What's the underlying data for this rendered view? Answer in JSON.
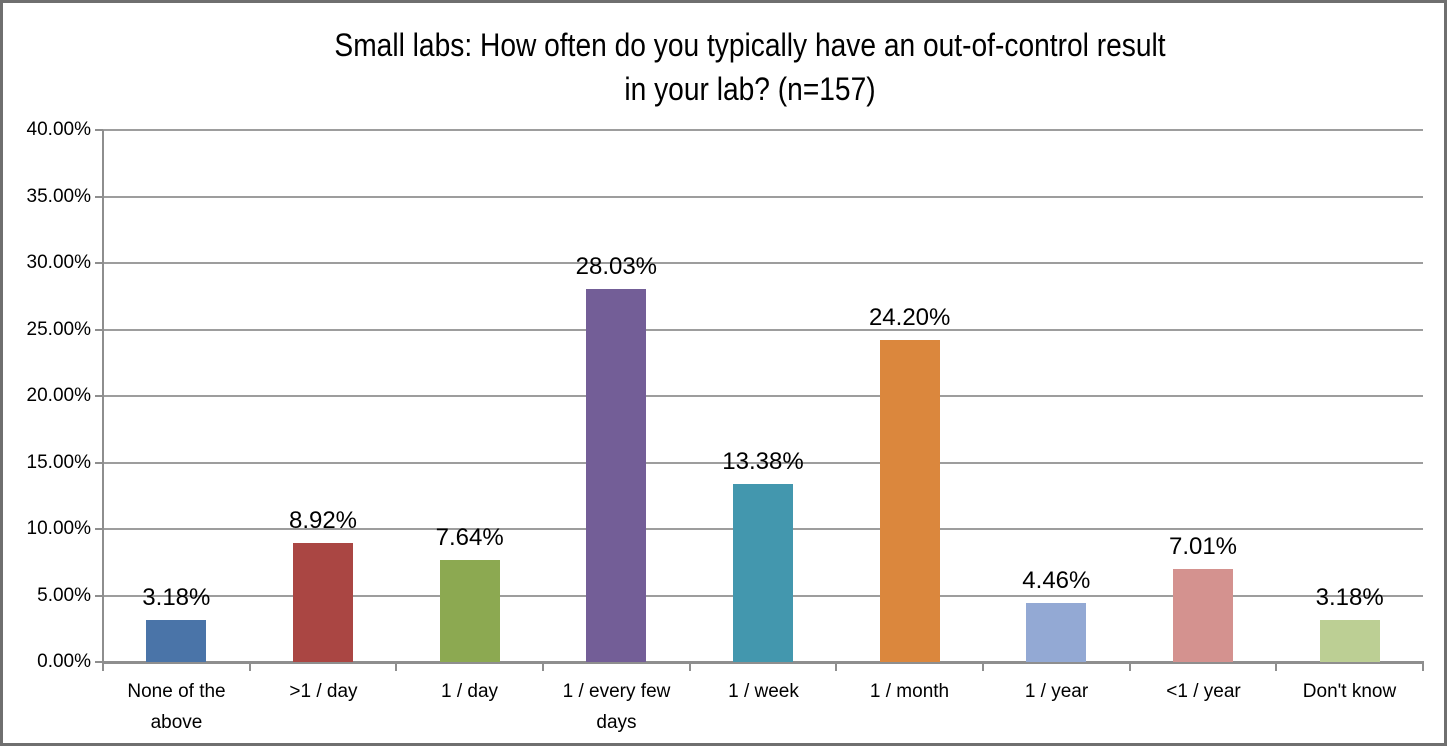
{
  "chart_data": {
    "type": "bar",
    "title": "Small labs: How often do you typically have an out-of-control result in your lab? (n=157)",
    "title_lines": [
      "Small labs: How often do you typically have an out-of-control result",
      "in your lab? (n=157)"
    ],
    "categories": [
      "None of the above",
      ">1 / day",
      "1 / day",
      "1 / every few days",
      "1 / week",
      "1 / month",
      "1 / year",
      "<1 / year",
      "Don't know"
    ],
    "values": [
      3.18,
      8.92,
      7.64,
      28.03,
      13.38,
      24.2,
      4.46,
      7.01,
      3.18
    ],
    "value_labels": [
      "3.18%",
      "8.92%",
      "7.64%",
      "28.03%",
      "13.38%",
      "24.20%",
      "4.46%",
      "7.01%",
      "3.18%"
    ],
    "bar_colors": [
      "#4A74A8",
      "#AA4643",
      "#8CA951",
      "#735E97",
      "#4397AE",
      "#DB873D",
      "#93A9D4",
      "#D4928F",
      "#BCCF94"
    ],
    "xlabel": "",
    "ylabel": "",
    "ylim": [
      0,
      40
    ],
    "ytick_step": 5,
    "ytick_labels": [
      "0.00%",
      "5.00%",
      "10.00%",
      "15.00%",
      "20.00%",
      "25.00%",
      "30.00%",
      "35.00%",
      "40.00%"
    ],
    "grid": "horizontal",
    "legend": "none",
    "colors": {
      "gridline": "#9d9d9d",
      "axis": "#8e8e8e",
      "text": "#000000",
      "background": "#ffffff",
      "frame_border": "#6f6f6f"
    }
  }
}
